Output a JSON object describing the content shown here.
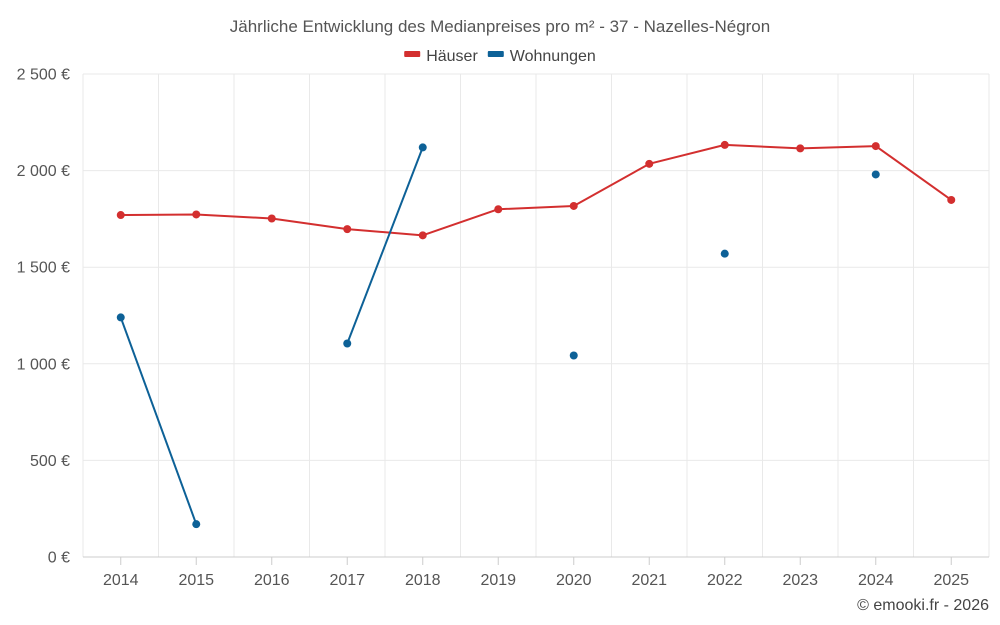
{
  "chart_data": {
    "type": "line",
    "title": "Jährliche Entwicklung des Medianpreises pro m² - 37 - Nazelles-Négron",
    "xlabel": "",
    "ylabel": "",
    "categories": [
      "2014",
      "2015",
      "2016",
      "2017",
      "2018",
      "2019",
      "2020",
      "2021",
      "2022",
      "2023",
      "2024",
      "2025"
    ],
    "ylim": [
      0,
      2500
    ],
    "yticks": [
      0,
      500,
      1000,
      1500,
      2000,
      2500
    ],
    "ytick_labels": [
      "0 €",
      "500 €",
      "1 000 €",
      "1 500 €",
      "2 000 €",
      "2 500 €"
    ],
    "grid": true,
    "legend_position": "top-center",
    "series": [
      {
        "name": "Häuser",
        "color": "#d32f2f",
        "values": [
          1770,
          1773,
          1752,
          1697,
          1665,
          1800,
          1817,
          2035,
          2133,
          2115,
          2127,
          1848
        ]
      },
      {
        "name": "Wohnungen",
        "color": "#0d6197",
        "values": [
          1240,
          170,
          null,
          1105,
          2120,
          null,
          1043,
          null,
          1570,
          null,
          1980,
          null
        ]
      }
    ],
    "credit": "© emooki.fr - 2026"
  }
}
